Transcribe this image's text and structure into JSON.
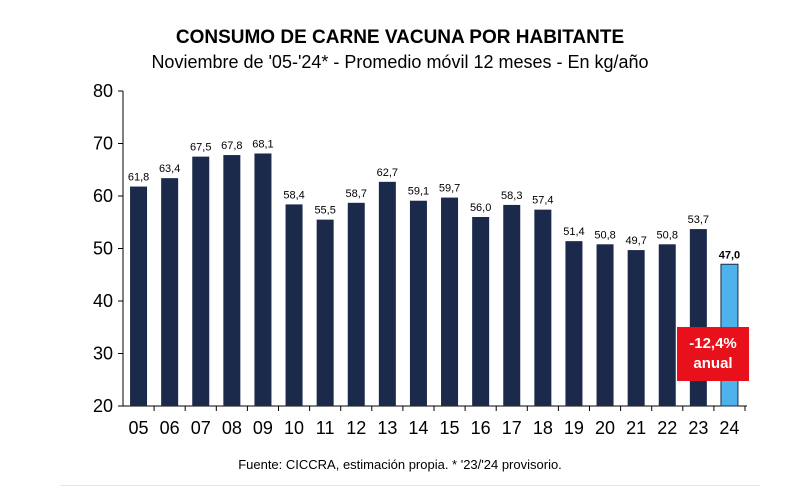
{
  "chart_data": {
    "type": "bar",
    "title": "CONSUMO DE CARNE VACUNA POR HABITANTE",
    "subtitle": "Noviembre de '05-'24* - Promedio móvil 12 meses -  En kg/año",
    "categories": [
      "05",
      "06",
      "07",
      "08",
      "09",
      "10",
      "11",
      "12",
      "13",
      "14",
      "15",
      "16",
      "17",
      "18",
      "19",
      "20",
      "21",
      "22",
      "23",
      "24"
    ],
    "values": [
      61.8,
      63.4,
      67.5,
      67.8,
      68.1,
      58.4,
      55.5,
      58.7,
      62.7,
      59.1,
      59.7,
      56.0,
      58.3,
      57.4,
      51.4,
      50.8,
      49.7,
      50.8,
      53.7,
      47.0
    ],
    "value_labels": [
      "61,8",
      "63,4",
      "67,5",
      "67,8",
      "68,1",
      "58,4",
      "55,5",
      "58,7",
      "62,7",
      "59,1",
      "59,7",
      "56,0",
      "58,3",
      "57,4",
      "51,4",
      "50,8",
      "49,7",
      "50,8",
      "53,7",
      "47,0"
    ],
    "ylim": [
      20,
      80
    ],
    "yticks": [
      20,
      30,
      40,
      50,
      60,
      70,
      80
    ],
    "xlabel": "",
    "ylabel": "",
    "grid": false,
    "colors": {
      "bar": "#1b2a4a",
      "highlight": "#4db3ea",
      "highlight_border": "#1b2a4a",
      "badge": "#e8101a"
    },
    "highlight_index": 19,
    "annotation": {
      "line1": "-12,4%",
      "line2": "anual"
    },
    "source": "Fuente: CICCRA, estimación propia. * '23/'24 provisorio."
  }
}
